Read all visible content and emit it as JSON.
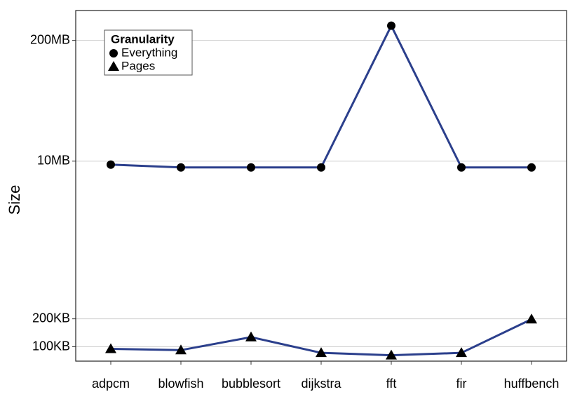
{
  "chart_data": {
    "type": "line",
    "y_label": "Size",
    "categories": [
      "adpcm",
      "blowfish",
      "bubblesort",
      "dijkstra",
      "fft",
      "fir",
      "huffbench"
    ],
    "series": [
      {
        "name": "Everything",
        "color": "#2b3f8c",
        "marker": "circle",
        "marker_color": "#000000",
        "values": [
          9170,
          8560,
          8560,
          8560,
          288000,
          8560,
          8560
        ]
      },
      {
        "name": "Pages",
        "color": "#2b3f8c",
        "marker": "triangle",
        "marker_color": "#000000",
        "values": [
          95,
          92,
          127,
          86,
          81,
          86,
          198
        ]
      }
    ],
    "ylim": [
      70,
      420000
    ],
    "log_y": true,
    "yticks": [
      {
        "value": 100,
        "label": "100KB"
      },
      {
        "value": 200,
        "label": "200KB"
      },
      {
        "value": 10000,
        "label": "10MB"
      },
      {
        "value": 200000,
        "label": "200MB"
      }
    ],
    "grid": true,
    "legend": {
      "title": "Granularity",
      "position": "top-left"
    }
  }
}
